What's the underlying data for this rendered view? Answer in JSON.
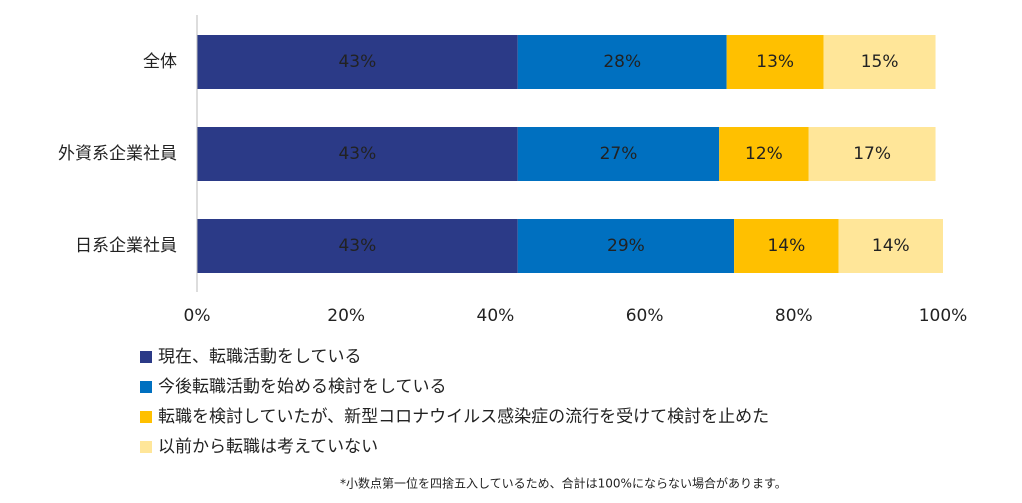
{
  "chart_data": {
    "type": "stacked_barh",
    "categories": [
      "全体",
      "外資系企業社員",
      "日系企業社員"
    ],
    "series": [
      {
        "name": "現在、転職活動をしている",
        "color": "#2b3a87",
        "values": [
          43,
          43,
          43
        ],
        "value_labels": [
          "43%",
          "43%",
          "43%"
        ]
      },
      {
        "name": "今後転職活動を始める検討をしている",
        "color": "#0070c0",
        "values": [
          28,
          27,
          29
        ],
        "value_labels": [
          "28%",
          "27%",
          "29%"
        ]
      },
      {
        "name": "転職を検討していたが、新型コロナウイルス感染症の流行を受けて検討を止めた",
        "color": "#ffc000",
        "values": [
          13,
          12,
          14
        ],
        "value_labels": [
          "13%",
          "12%",
          "14%"
        ]
      },
      {
        "name": "以前から転職は考えていない",
        "color": "#ffe699",
        "values": [
          15,
          17,
          14
        ],
        "value_labels": [
          "15%",
          "17%",
          "14%"
        ]
      }
    ],
    "xlim": [
      0,
      100
    ],
    "xticks": [
      {
        "value": 0,
        "label": "0%"
      },
      {
        "value": 20,
        "label": "20%"
      },
      {
        "value": 40,
        "label": "40%"
      },
      {
        "value": 60,
        "label": "60%"
      },
      {
        "value": 80,
        "label": "80%"
      },
      {
        "value": 100,
        "label": "100%"
      }
    ],
    "legend": "bottom",
    "note": "*小数点第一位を四捨五入しているため、合計は100%にならない場合があります。"
  }
}
